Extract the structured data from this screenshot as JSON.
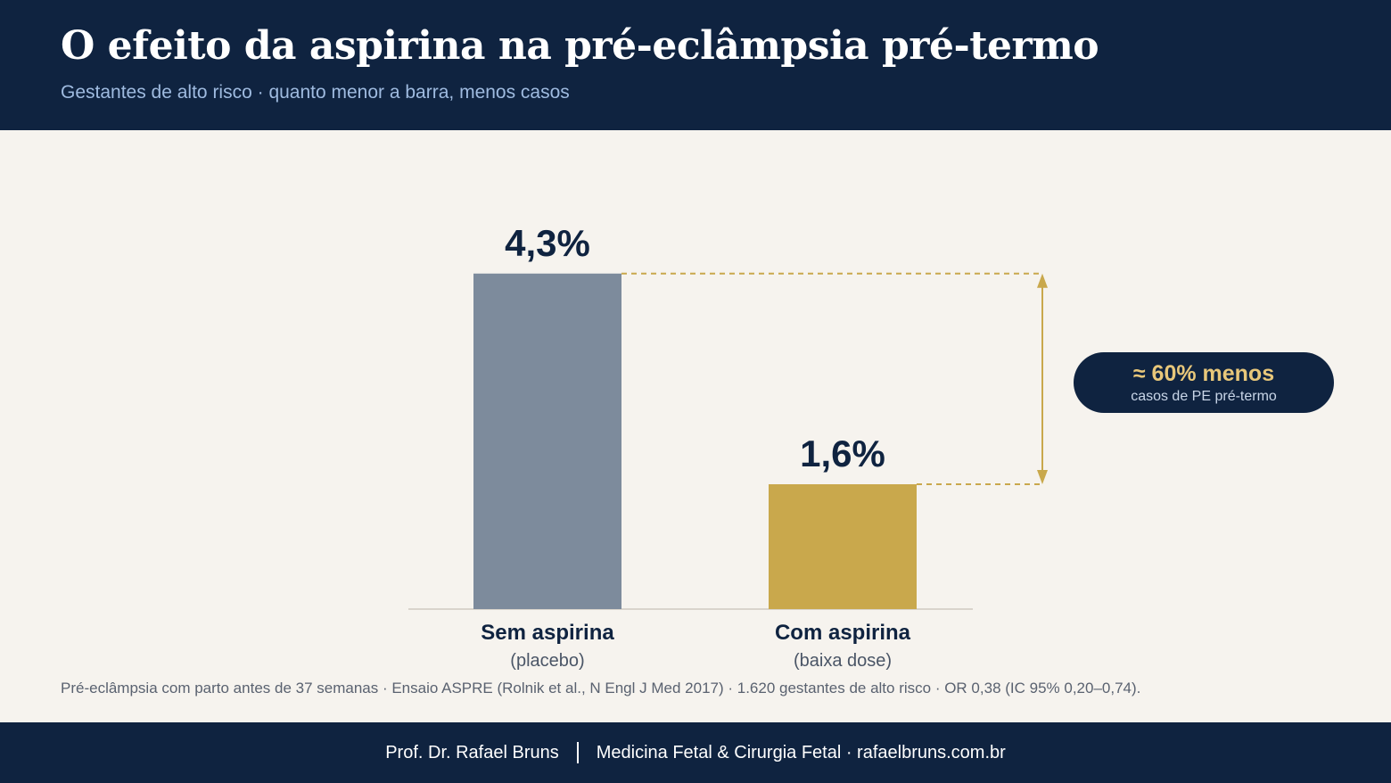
{
  "header": {
    "title": "O efeito da aspirina na pré-eclâmpsia pré-termo",
    "subtitle": "Gestantes de alto risco · quanto menor a barra, menos casos"
  },
  "chart_data": {
    "type": "bar",
    "unit": "%",
    "ylim": [
      0,
      5.2
    ],
    "grid": false,
    "legend": "none",
    "categories": [
      {
        "label": "Sem aspirina",
        "sublabel": "(placebo)",
        "value": 4.3,
        "display": "4,3%",
        "color": "#7d8b9c"
      },
      {
        "label": "Com aspirina",
        "sublabel": "(baixa dose)",
        "value": 1.6,
        "display": "1,6%",
        "color": "#c9a84c"
      }
    ],
    "annotation": {
      "main": "≈ 60% menos",
      "sub": "casos de PE pré-termo",
      "color": "#c9a84c"
    }
  },
  "note": "Pré-eclâmpsia com parto antes de 37 semanas · Ensaio ASPRE (Rolnik et al., N Engl J Med 2017) · 1.620 gestantes de alto risco · OR 0,38 (IC 95% 0,20–0,74).",
  "footer": {
    "author": "Prof. Dr. Rafael Bruns",
    "tagline": "Medicina Fetal & Cirurgia Fetal · rafaelbruns.com.br"
  },
  "colors": {
    "navy": "#0f2340",
    "background": "#f6f3ee",
    "gold": "#c9a84c",
    "slate": "#7d8b9c"
  }
}
